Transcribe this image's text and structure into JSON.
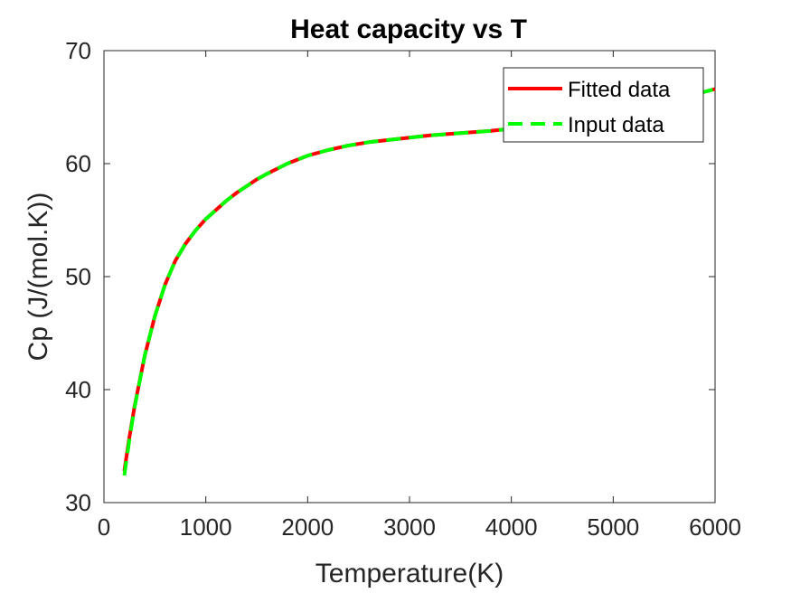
{
  "chart_data": {
    "type": "line",
    "title": "Heat capacity vs T",
    "xlabel": "Temperature(K)",
    "ylabel": "Cp (J/(mol.K))",
    "xlim": [
      0,
      6000
    ],
    "ylim": [
      30,
      70
    ],
    "xticks": [
      "0",
      "1000",
      "2000",
      "3000",
      "4000",
      "5000",
      "6000"
    ],
    "yticks": [
      "30",
      "40",
      "50",
      "60",
      "70"
    ],
    "grid": false,
    "legend_position": "top-right",
    "series": [
      {
        "name": "Fitted data",
        "color": "#ff0000",
        "style": "solid",
        "x": [
          200,
          250,
          300,
          400,
          500,
          600,
          700,
          800,
          900,
          1000,
          1100,
          1200,
          1300,
          1400,
          1500,
          1600,
          1800,
          2000,
          2200,
          2400,
          2600,
          2800,
          3000,
          3200,
          3500,
          3800,
          4000,
          4500,
          5000,
          5500,
          6000
        ],
        "y": [
          32.8,
          35.8,
          38.5,
          43.0,
          46.5,
          49.3,
          51.4,
          52.9,
          54.1,
          55.1,
          55.9,
          56.7,
          57.4,
          58.0,
          58.6,
          59.1,
          60.0,
          60.7,
          61.2,
          61.6,
          61.9,
          62.1,
          62.3,
          62.5,
          62.7,
          62.9,
          63.1,
          63.6,
          64.4,
          65.4,
          66.6
        ]
      },
      {
        "name": "Input data",
        "color": "#00ff00",
        "style": "dashed",
        "x": [
          200,
          250,
          300,
          400,
          500,
          600,
          700,
          800,
          900,
          1000,
          1100,
          1200,
          1300,
          1400,
          1500,
          1600,
          1800,
          2000,
          2200,
          2400,
          2600,
          2800,
          3000,
          3200,
          3500,
          3800,
          4000,
          4500,
          5000,
          5500,
          6000
        ],
        "y": [
          32.4,
          35.6,
          38.4,
          43.0,
          46.5,
          49.3,
          51.4,
          52.9,
          54.1,
          55.1,
          55.9,
          56.7,
          57.4,
          58.0,
          58.6,
          59.1,
          60.0,
          60.7,
          61.2,
          61.6,
          61.9,
          62.1,
          62.3,
          62.5,
          62.7,
          62.9,
          63.1,
          63.6,
          64.4,
          65.4,
          66.6
        ]
      }
    ]
  }
}
